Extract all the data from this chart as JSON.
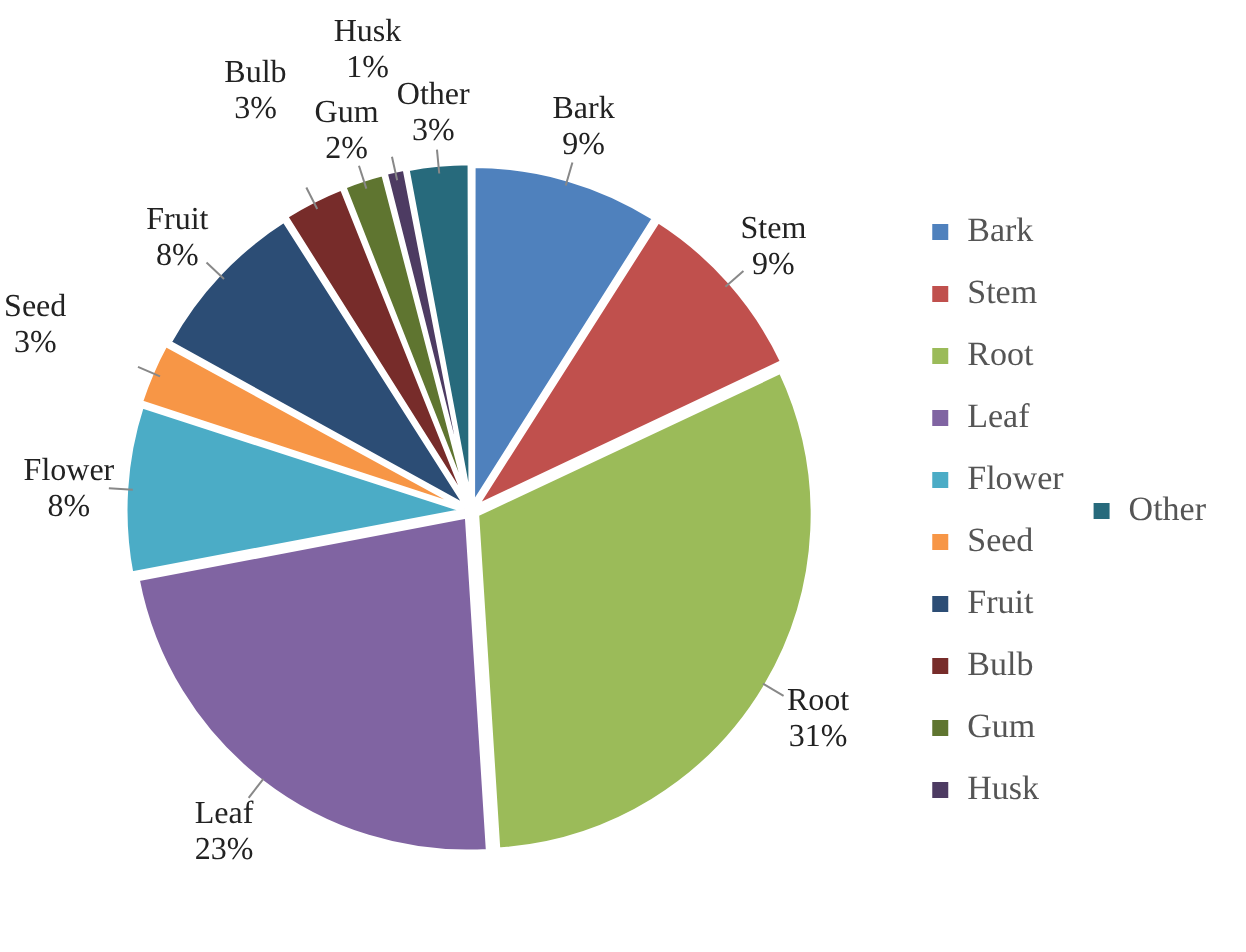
{
  "chart_data": {
    "type": "pie",
    "categories": [
      "Bark",
      "Stem",
      "Root",
      "Leaf",
      "Flower",
      "Seed",
      "Fruit",
      "Bulb",
      "Gum",
      "Husk",
      "Other"
    ],
    "values": [
      9,
      9,
      31,
      23,
      8,
      3,
      8,
      3,
      2,
      1,
      3
    ],
    "value_labels": [
      "9%",
      "9%",
      "31%",
      "23%",
      "8%",
      "3%",
      "8%",
      "3%",
      "2%",
      "1%",
      "3%"
    ],
    "colors": [
      "#4f81bd",
      "#c0504d",
      "#9bbb59",
      "#8064a2",
      "#4bacc6",
      "#f79646",
      "#2c4d75",
      "#772c2a",
      "#5f7530",
      "#4d3b62",
      "#276a7c"
    ],
    "legend": "right"
  }
}
